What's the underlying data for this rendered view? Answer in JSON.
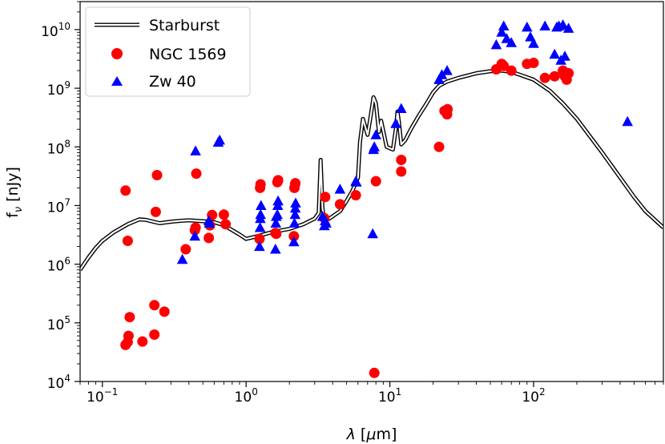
{
  "chart_data": {
    "type": "scatter",
    "x_scale": "log",
    "y_scale": "log",
    "xlim": [
      0.07,
      800
    ],
    "ylim": [
      10000,
      30000000000
    ],
    "x_ticks": [
      {
        "value": 0.1,
        "base": "10",
        "exp": "−1"
      },
      {
        "value": 1,
        "base": "10",
        "exp": "0"
      },
      {
        "value": 10,
        "base": "10",
        "exp": "1"
      },
      {
        "value": 100,
        "base": "10",
        "exp": "2"
      }
    ],
    "y_ticks": [
      {
        "value": 10000,
        "base": "10",
        "exp": "4"
      },
      {
        "value": 100000,
        "base": "10",
        "exp": "5"
      },
      {
        "value": 1000000,
        "base": "10",
        "exp": "6"
      },
      {
        "value": 10000000,
        "base": "10",
        "exp": "7"
      },
      {
        "value": 100000000,
        "base": "10",
        "exp": "8"
      },
      {
        "value": 1000000000,
        "base": "10",
        "exp": "9"
      },
      {
        "value": 10000000000,
        "base": "10",
        "exp": "10"
      }
    ],
    "xlabel": {
      "sym": "λ",
      "rest": " [",
      "mu": "μ",
      "unit": "m]"
    },
    "ylabel": {
      "base": "f",
      "sub": "ν",
      "unit": " [nJy]"
    },
    "legend": {
      "position": "upper-left",
      "entries": [
        {
          "label": "Starburst",
          "marker": "double-line"
        },
        {
          "label": "NGC 1569",
          "marker": "circle",
          "color": "#ff0000"
        },
        {
          "label": "Zw 40",
          "marker": "triangle",
          "color": "#0000ff"
        }
      ]
    },
    "series": [
      {
        "name": "Starburst",
        "kind": "line",
        "color": "#000000",
        "x": [
          0.07,
          0.08,
          0.09,
          0.1,
          0.12,
          0.15,
          0.18,
          0.2,
          0.25,
          0.3,
          0.35,
          0.4,
          0.5,
          0.6,
          0.7,
          0.8,
          0.9,
          1.0,
          1.2,
          1.5,
          2.0,
          2.5,
          3.0,
          3.2,
          3.3,
          3.4,
          3.5,
          3.8,
          4.5,
          5.0,
          5.5,
          6.0,
          6.2,
          6.5,
          7.0,
          7.3,
          7.7,
          8.0,
          8.4,
          8.7,
          9.5,
          10.5,
          11.0,
          11.3,
          11.6,
          12.0,
          12.8,
          14.0,
          16.0,
          18.0,
          20.0,
          22.0,
          25.0,
          30.0,
          40.0,
          50.0,
          60.0,
          70.0,
          80.0,
          100.0,
          130.0,
          160.0,
          200.0,
          300.0,
          400.0,
          500.0,
          600.0,
          800.0
        ],
        "y": [
          800000,
          1300000,
          1900000,
          2500000,
          3500000,
          4800000,
          5800000,
          5700000,
          5000000,
          5300000,
          5500000,
          5600000,
          5400000,
          5200000,
          4600000,
          3800000,
          3200000,
          2700000,
          3000000,
          3500000,
          4000000,
          4800000,
          6000000,
          7500000,
          60000000,
          9000000,
          5500000,
          6000000,
          8000000,
          12000000,
          18000000,
          30000000,
          120000000,
          300000000,
          160000000,
          300000000,
          700000000,
          550000000,
          180000000,
          280000000,
          100000000,
          90000000,
          200000000,
          400000000,
          250000000,
          110000000,
          130000000,
          200000000,
          350000000,
          550000000,
          850000000,
          1100000000,
          1300000000,
          1500000000,
          1800000000,
          1950000000,
          2000000000,
          1900000000,
          1700000000,
          1400000000,
          900000000,
          550000000,
          300000000,
          80000000,
          30000000,
          14000000,
          8000000,
          4200000
        ]
      },
      {
        "name": "NGC 1569",
        "kind": "scatter",
        "marker": "circle",
        "color": "#ff0000",
        "x": [
          0.145,
          0.15,
          0.155,
          0.152,
          0.145,
          0.15,
          0.19,
          0.23,
          0.23,
          0.235,
          0.24,
          0.27,
          0.38,
          0.44,
          0.445,
          0.45,
          0.55,
          0.56,
          0.58,
          0.7,
          0.72,
          1.24,
          1.25,
          1.26,
          1.6,
          1.62,
          1.65,
          1.67,
          2.15,
          2.17,
          2.19,
          2.2,
          3.5,
          3.55,
          4.5,
          5.8,
          7.8,
          8.0,
          12.0,
          12.0,
          22.0,
          24.0,
          25.0,
          25.2,
          55.0,
          60.0,
          62.0,
          70.0,
          90.0,
          100.0,
          120.0,
          140.0,
          160.0,
          165.0,
          170.0,
          175.0
        ],
        "y": [
          18000000,
          2500000,
          125000,
          60000,
          42000,
          47000,
          48000,
          200000,
          63000,
          7800000,
          33000000,
          155000,
          1800000,
          3800000,
          4200000,
          35000000,
          2800000,
          4600000,
          6900000,
          7000000,
          4800000,
          2700000,
          20000000,
          23000000,
          3400000,
          3300000,
          25000000,
          27000000,
          3000000,
          20000000,
          23000000,
          24000000,
          6100000,
          14000000,
          10500000,
          15000000,
          14000,
          26000000,
          38000000,
          60000000,
          100000000,
          410000000,
          360000000,
          440000000,
          2100000000,
          2600000000,
          2400000000,
          2000000000,
          2600000000,
          2700000000,
          1500000000,
          1600000000,
          2000000000,
          1600000000,
          1400000000,
          1800000000
        ]
      },
      {
        "name": "Zw 40",
        "kind": "scatter",
        "marker": "triangle",
        "color": "#0000ff",
        "x": [
          0.36,
          0.44,
          0.445,
          0.55,
          0.555,
          0.64,
          0.655,
          1.24,
          1.25,
          1.255,
          1.26,
          1.27,
          1.6,
          1.61,
          1.62,
          1.65,
          1.66,
          1.67,
          2.15,
          2.17,
          2.19,
          2.2,
          2.21,
          3.4,
          3.5,
          3.55,
          3.6,
          4.5,
          5.8,
          5.85,
          7.6,
          7.7,
          7.8,
          8.0,
          11.0,
          12.0,
          22.0,
          23.0,
          25.0,
          55.0,
          60.0,
          62.0,
          65.0,
          70.0,
          90.0,
          95.0,
          100.0,
          120.0,
          140.0,
          145.0,
          150.0,
          155.0,
          160.0,
          165.0,
          175.0,
          450.0
        ],
        "y": [
          1200000,
          3000000,
          85000000,
          5500000,
          5000000,
          120000000,
          130000000,
          2000000,
          4200000,
          6000000,
          7000000,
          10000000,
          1800000,
          5000000,
          6500000,
          7000000,
          10000000,
          12000000,
          2400000,
          5000000,
          7000000,
          9000000,
          11000000,
          6500000,
          4500000,
          5500000,
          5000000,
          19000000,
          26000000,
          25000000,
          3300000,
          90000000,
          100000000,
          160000000,
          250000000,
          450000000,
          1400000000,
          1700000000,
          2000000000,
          5500000000,
          9000000000,
          11500000000,
          7000000000,
          6000000000,
          11000000000,
          7500000000,
          5800000000,
          11500000000,
          3800000000,
          11000000000,
          11500000000,
          3000000000,
          12000000000,
          3500000000,
          10500000000,
          270000000
        ]
      }
    ]
  }
}
